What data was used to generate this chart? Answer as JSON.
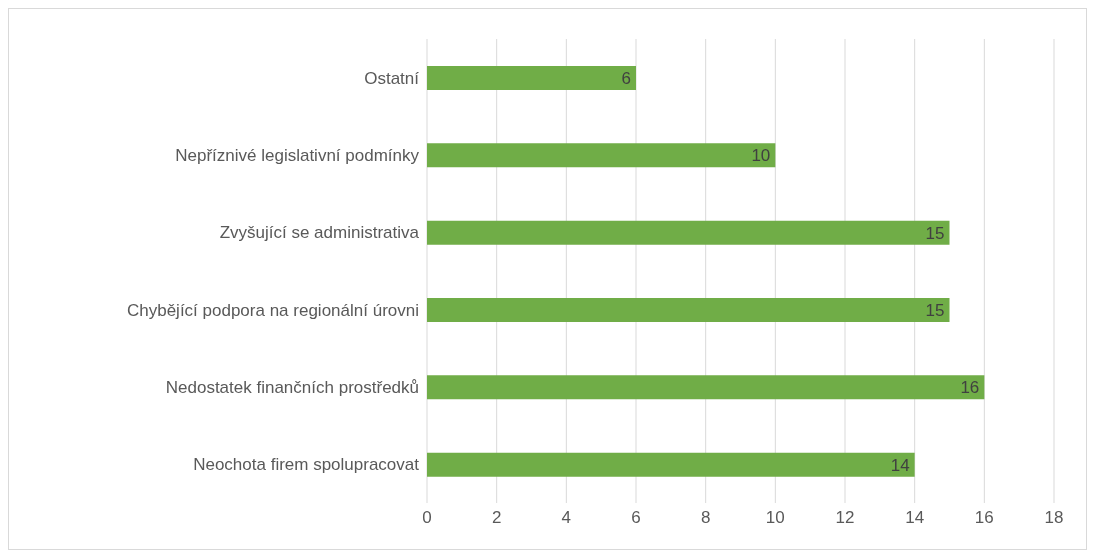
{
  "chart_data": {
    "type": "bar",
    "orientation": "horizontal",
    "categories": [
      "Ostatní",
      "Nepříznivé legislativní podmínky",
      "Zvyšující se administrativa",
      "Chybějící podpora na regionální úrovni",
      "Nedostatek finančních prostředků",
      "Neochota firem spolupracovat"
    ],
    "values": [
      6,
      10,
      15,
      15,
      16,
      14
    ],
    "color": "#70ad47",
    "xlim": [
      0,
      18
    ],
    "xticks": [
      0,
      2,
      4,
      6,
      8,
      10,
      12,
      14,
      16,
      18
    ],
    "grid": "x",
    "data_labels": true
  }
}
